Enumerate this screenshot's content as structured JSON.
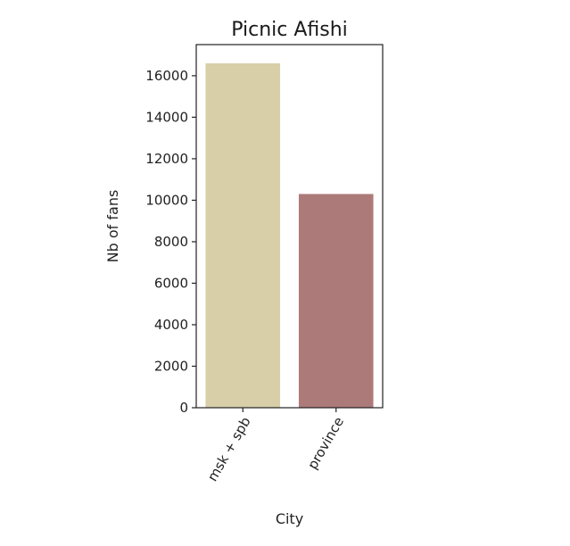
{
  "chart_data": {
    "type": "bar",
    "title": "Picnic Afishi",
    "xlabel": "City",
    "ylabel": "Nb of fans",
    "categories": [
      "msk + spb",
      "province"
    ],
    "values": [
      16600,
      10300
    ],
    "colors": [
      "#d8cfa8",
      "#ad7a7a"
    ],
    "ylim": [
      0,
      17500
    ],
    "yticks": [
      0,
      2000,
      4000,
      6000,
      8000,
      10000,
      12000,
      14000,
      16000
    ],
    "ytick_labels": [
      "0",
      "2000",
      "4000",
      "6000",
      "8000",
      "10000",
      "12000",
      "14000",
      "16000"
    ],
    "grid": false,
    "xtick_rotation_deg": -60
  }
}
